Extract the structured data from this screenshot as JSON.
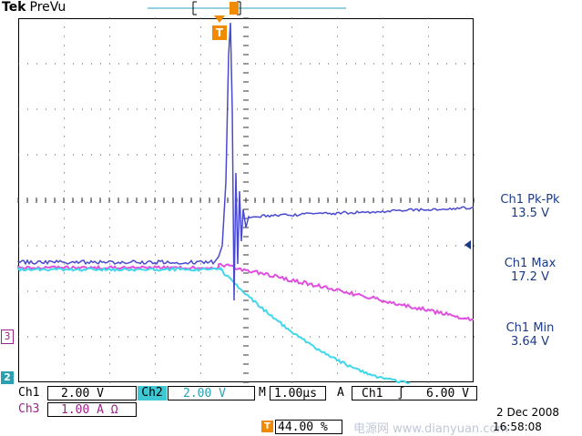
{
  "header": {
    "brand": "Tek",
    "mode": "PreVu"
  },
  "trigger_marker": {
    "label": "T"
  },
  "measurements": [
    {
      "label": "Ch1 Pk-Pk",
      "value": "13.5 V"
    },
    {
      "label": "Ch1 Max",
      "value": "17.2 V"
    },
    {
      "label": "Ch1 Min",
      "value": "3.64 V"
    }
  ],
  "channel_markers": {
    "ch3": "3",
    "ch2": "2"
  },
  "settings": {
    "ch1_label": "Ch1",
    "ch1_scale": "2.00 V",
    "ch2_label": "Ch2",
    "ch2_scale": "2.00 V",
    "time_label": "M",
    "time_scale": "1.00µs",
    "trig_label": "A",
    "trig_source": "Ch1",
    "trig_slope": "∫",
    "trig_level": "6.00 V",
    "ch3_label": "Ch3",
    "ch3_scale": "1.00 A Ω",
    "trig_pos_label": "T",
    "trig_pos": "44.00 %"
  },
  "date": "2 Dec  2008",
  "time": "16:58:08",
  "watermark": "电源网  www.dianyuan.com",
  "colors": {
    "ch1": "#4a4ad0",
    "ch2": "#40d8e8",
    "ch3": "#e050e0",
    "trigger": "#f08a00",
    "measure": "#1a3a8a"
  }
}
